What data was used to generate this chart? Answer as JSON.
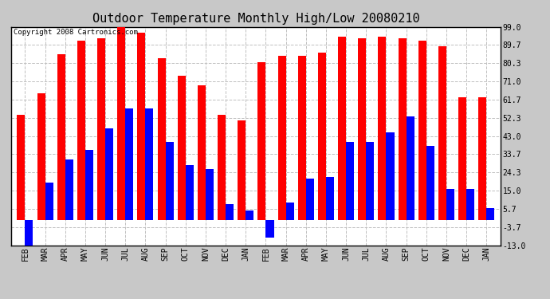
{
  "title": "Outdoor Temperature Monthly High/Low 20080210",
  "copyright": "Copyright 2008 Cartronics.com",
  "categories": [
    "FEB",
    "MAR",
    "APR",
    "MAY",
    "JUN",
    "JUL",
    "AUG",
    "SEP",
    "OCT",
    "NOV",
    "DEC",
    "JAN",
    "FEB",
    "MAR",
    "APR",
    "MAY",
    "JUN",
    "JUL",
    "AUG",
    "SEP",
    "OCT",
    "NOV",
    "DEC",
    "JAN"
  ],
  "highs": [
    54,
    65,
    85,
    92,
    93,
    99,
    96,
    83,
    74,
    69,
    54,
    51,
    81,
    84,
    84,
    86,
    94,
    93,
    94,
    93,
    92,
    89,
    63,
    63
  ],
  "lows": [
    -13,
    19,
    31,
    36,
    47,
    57,
    57,
    40,
    28,
    26,
    8,
    5,
    -9,
    9,
    21,
    22,
    40,
    40,
    45,
    53,
    38,
    16,
    16,
    6
  ],
  "bar_width": 0.4,
  "ylim_min": -13.0,
  "ylim_max": 99.0,
  "yticks": [
    -13.0,
    -3.7,
    5.7,
    15.0,
    24.3,
    33.7,
    43.0,
    52.3,
    61.7,
    71.0,
    80.3,
    89.7,
    99.0
  ],
  "high_color": "#ff0000",
  "low_color": "#0000ff",
  "fig_facecolor": "#c8c8c8",
  "plot_bg_color": "#ffffff",
  "grid_color": "#c0c0c0",
  "title_fontsize": 11,
  "tick_fontsize": 7,
  "copyright_fontsize": 6.5
}
